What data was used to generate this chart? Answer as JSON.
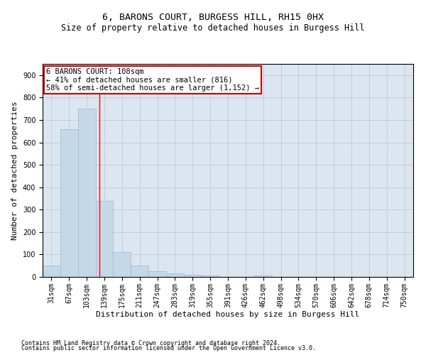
{
  "title1": "6, BARONS COURT, BURGESS HILL, RH15 0HX",
  "title2": "Size of property relative to detached houses in Burgess Hill",
  "xlabel": "Distribution of detached houses by size in Burgess Hill",
  "ylabel": "Number of detached properties",
  "footer1": "Contains HM Land Registry data © Crown copyright and database right 2024.",
  "footer2": "Contains public sector information licensed under the Open Government Licence v3.0.",
  "bin_labels": [
    "31sqm",
    "67sqm",
    "103sqm",
    "139sqm",
    "175sqm",
    "211sqm",
    "247sqm",
    "283sqm",
    "319sqm",
    "355sqm",
    "391sqm",
    "426sqm",
    "462sqm",
    "498sqm",
    "534sqm",
    "570sqm",
    "606sqm",
    "642sqm",
    "678sqm",
    "714sqm",
    "750sqm"
  ],
  "bar_heights": [
    50,
    660,
    750,
    340,
    110,
    50,
    25,
    15,
    10,
    5,
    0,
    0,
    5,
    0,
    0,
    0,
    0,
    0,
    0,
    0,
    0
  ],
  "bar_color": "#c5d8e8",
  "bar_edge_color": "#a0b8cc",
  "red_line_x": 2.72,
  "annotation_text": "6 BARONS COURT: 108sqm\n← 41% of detached houses are smaller (816)\n58% of semi-detached houses are larger (1,152) →",
  "annotation_box_color": "#ffffff",
  "annotation_box_edge": "#cc0000",
  "ylim": [
    0,
    950
  ],
  "yticks": [
    0,
    100,
    200,
    300,
    400,
    500,
    600,
    700,
    800,
    900
  ],
  "grid_color": "#c0c8d8",
  "plot_bg_color": "#dce6f0",
  "title_fontsize": 9.5,
  "subtitle_fontsize": 8.5,
  "tick_fontsize": 7,
  "label_fontsize": 8,
  "annotation_fontsize": 7.5,
  "footer_fontsize": 6
}
